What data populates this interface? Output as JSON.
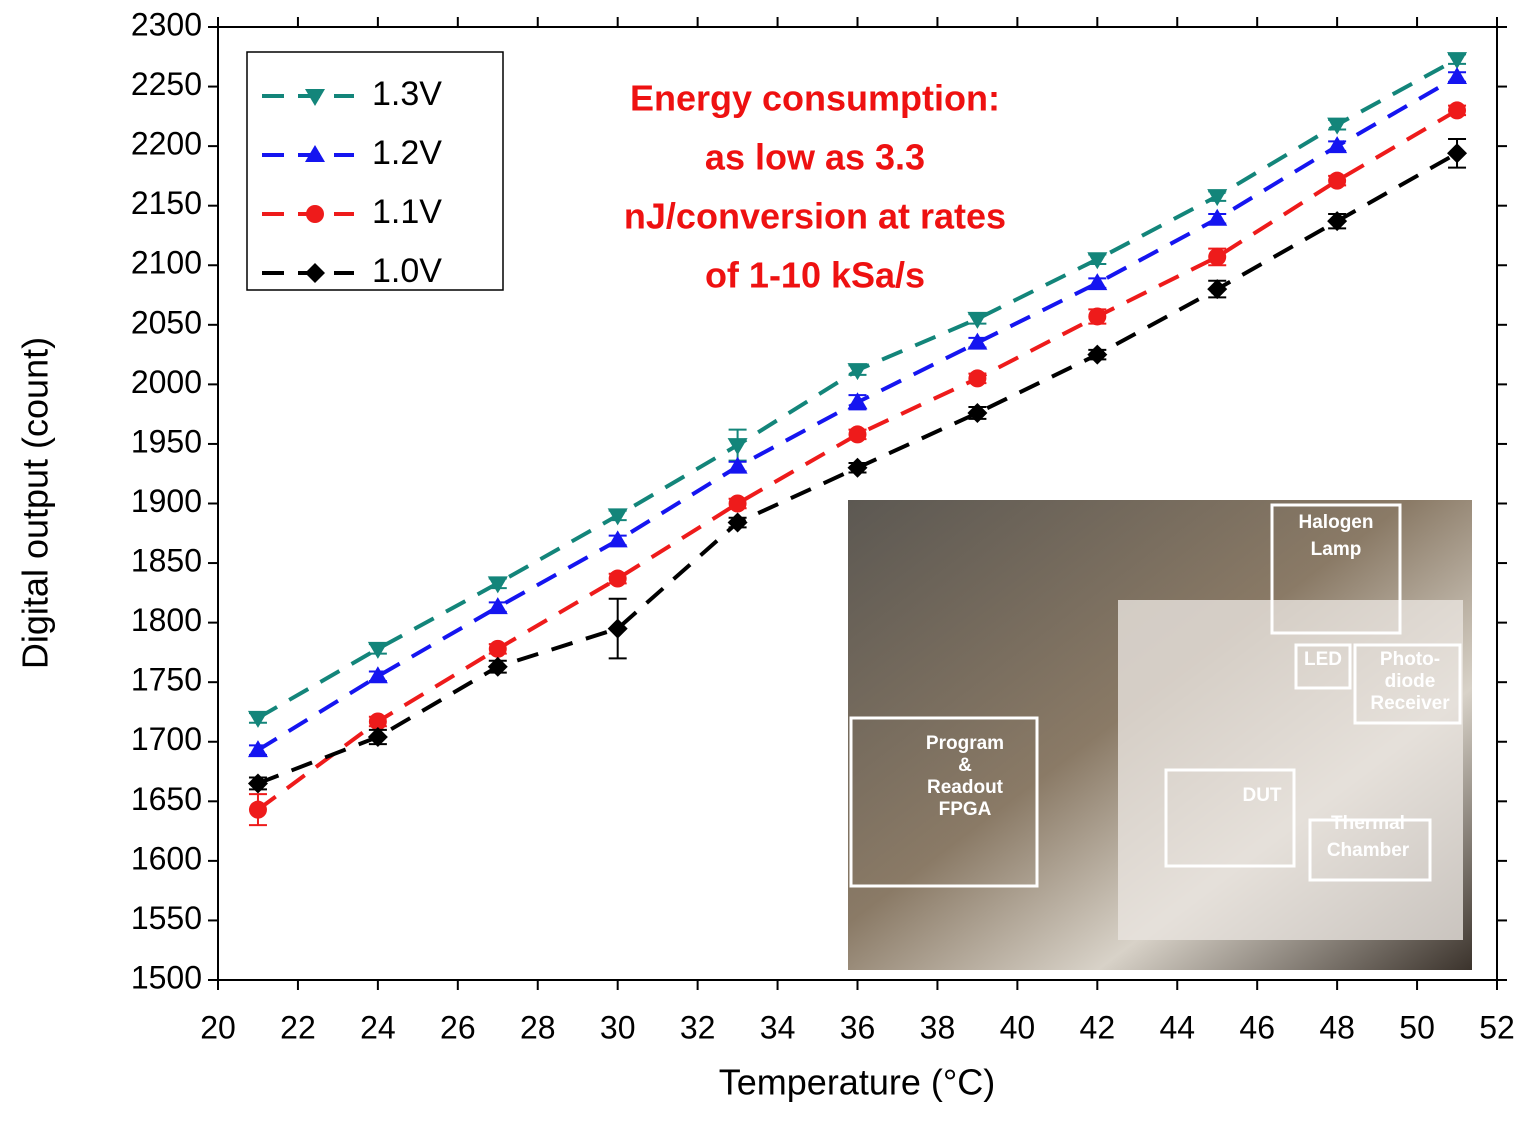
{
  "chart_data": {
    "type": "line",
    "x_label": "Temperature (°C)",
    "y_label": "Digital output (count)",
    "annotation": [
      "Energy consumption:",
      "as low as 3.3",
      "nJ/conversion at rates",
      "of 1-10 kSa/s"
    ],
    "x": [
      21,
      24,
      27,
      30,
      33,
      36,
      39,
      42,
      45,
      48,
      51
    ],
    "series": [
      {
        "name": "1.3V",
        "color": "#13857a",
        "marker": "triangle-down",
        "values": [
          1720,
          1778,
          1833,
          1890,
          1949,
          2012,
          2055,
          2105,
          2158,
          2218,
          2273
        ],
        "errors": [
          4,
          4,
          4,
          4,
          13,
          4,
          4,
          4,
          4,
          4,
          4
        ]
      },
      {
        "name": "1.2V",
        "color": "#1515f0",
        "marker": "triangle-up",
        "values": [
          1693,
          1755,
          1813,
          1869,
          1931,
          1985,
          2035,
          2085,
          2139,
          2200,
          2258
        ],
        "errors": [
          4,
          4,
          4,
          4,
          4,
          6,
          4,
          4,
          4,
          4,
          4
        ]
      },
      {
        "name": "1.1V",
        "color": "#ee1b1b",
        "marker": "circle",
        "values": [
          1643,
          1717,
          1778,
          1837,
          1900,
          1958,
          2005,
          2057,
          2107,
          2171,
          2230
        ],
        "errors": [
          13,
          4,
          4,
          4,
          4,
          4,
          4,
          6,
          7,
          4,
          4
        ]
      },
      {
        "name": "1.0V",
        "color": "#000000",
        "marker": "diamond",
        "values": [
          1665,
          1704,
          1763,
          1795,
          1884,
          1930,
          1976,
          2025,
          2080,
          2137,
          2194
        ],
        "errors": [
          5,
          6,
          5,
          25,
          4,
          4,
          5,
          4,
          7,
          6,
          12
        ]
      }
    ],
    "xlim": [
      20,
      52
    ],
    "ylim": [
      1500,
      2300
    ],
    "xticks": [
      20,
      22,
      24,
      26,
      28,
      30,
      32,
      34,
      36,
      38,
      40,
      42,
      44,
      46,
      48,
      50,
      52
    ],
    "yticks": [
      1500,
      1550,
      1600,
      1650,
      1700,
      1750,
      1800,
      1850,
      1900,
      1950,
      2000,
      2050,
      2100,
      2150,
      2200,
      2250,
      2300
    ],
    "legend": "upper left",
    "inset_labels": [
      [
        "Halogen",
        "Lamp"
      ],
      [
        "LED"
      ],
      [
        "Photo-",
        "diode",
        "Receiver"
      ],
      [
        "Program",
        "&",
        "Readout",
        "FPGA"
      ],
      [
        "DUT"
      ],
      [
        "Thermal",
        "Chamber"
      ]
    ]
  }
}
